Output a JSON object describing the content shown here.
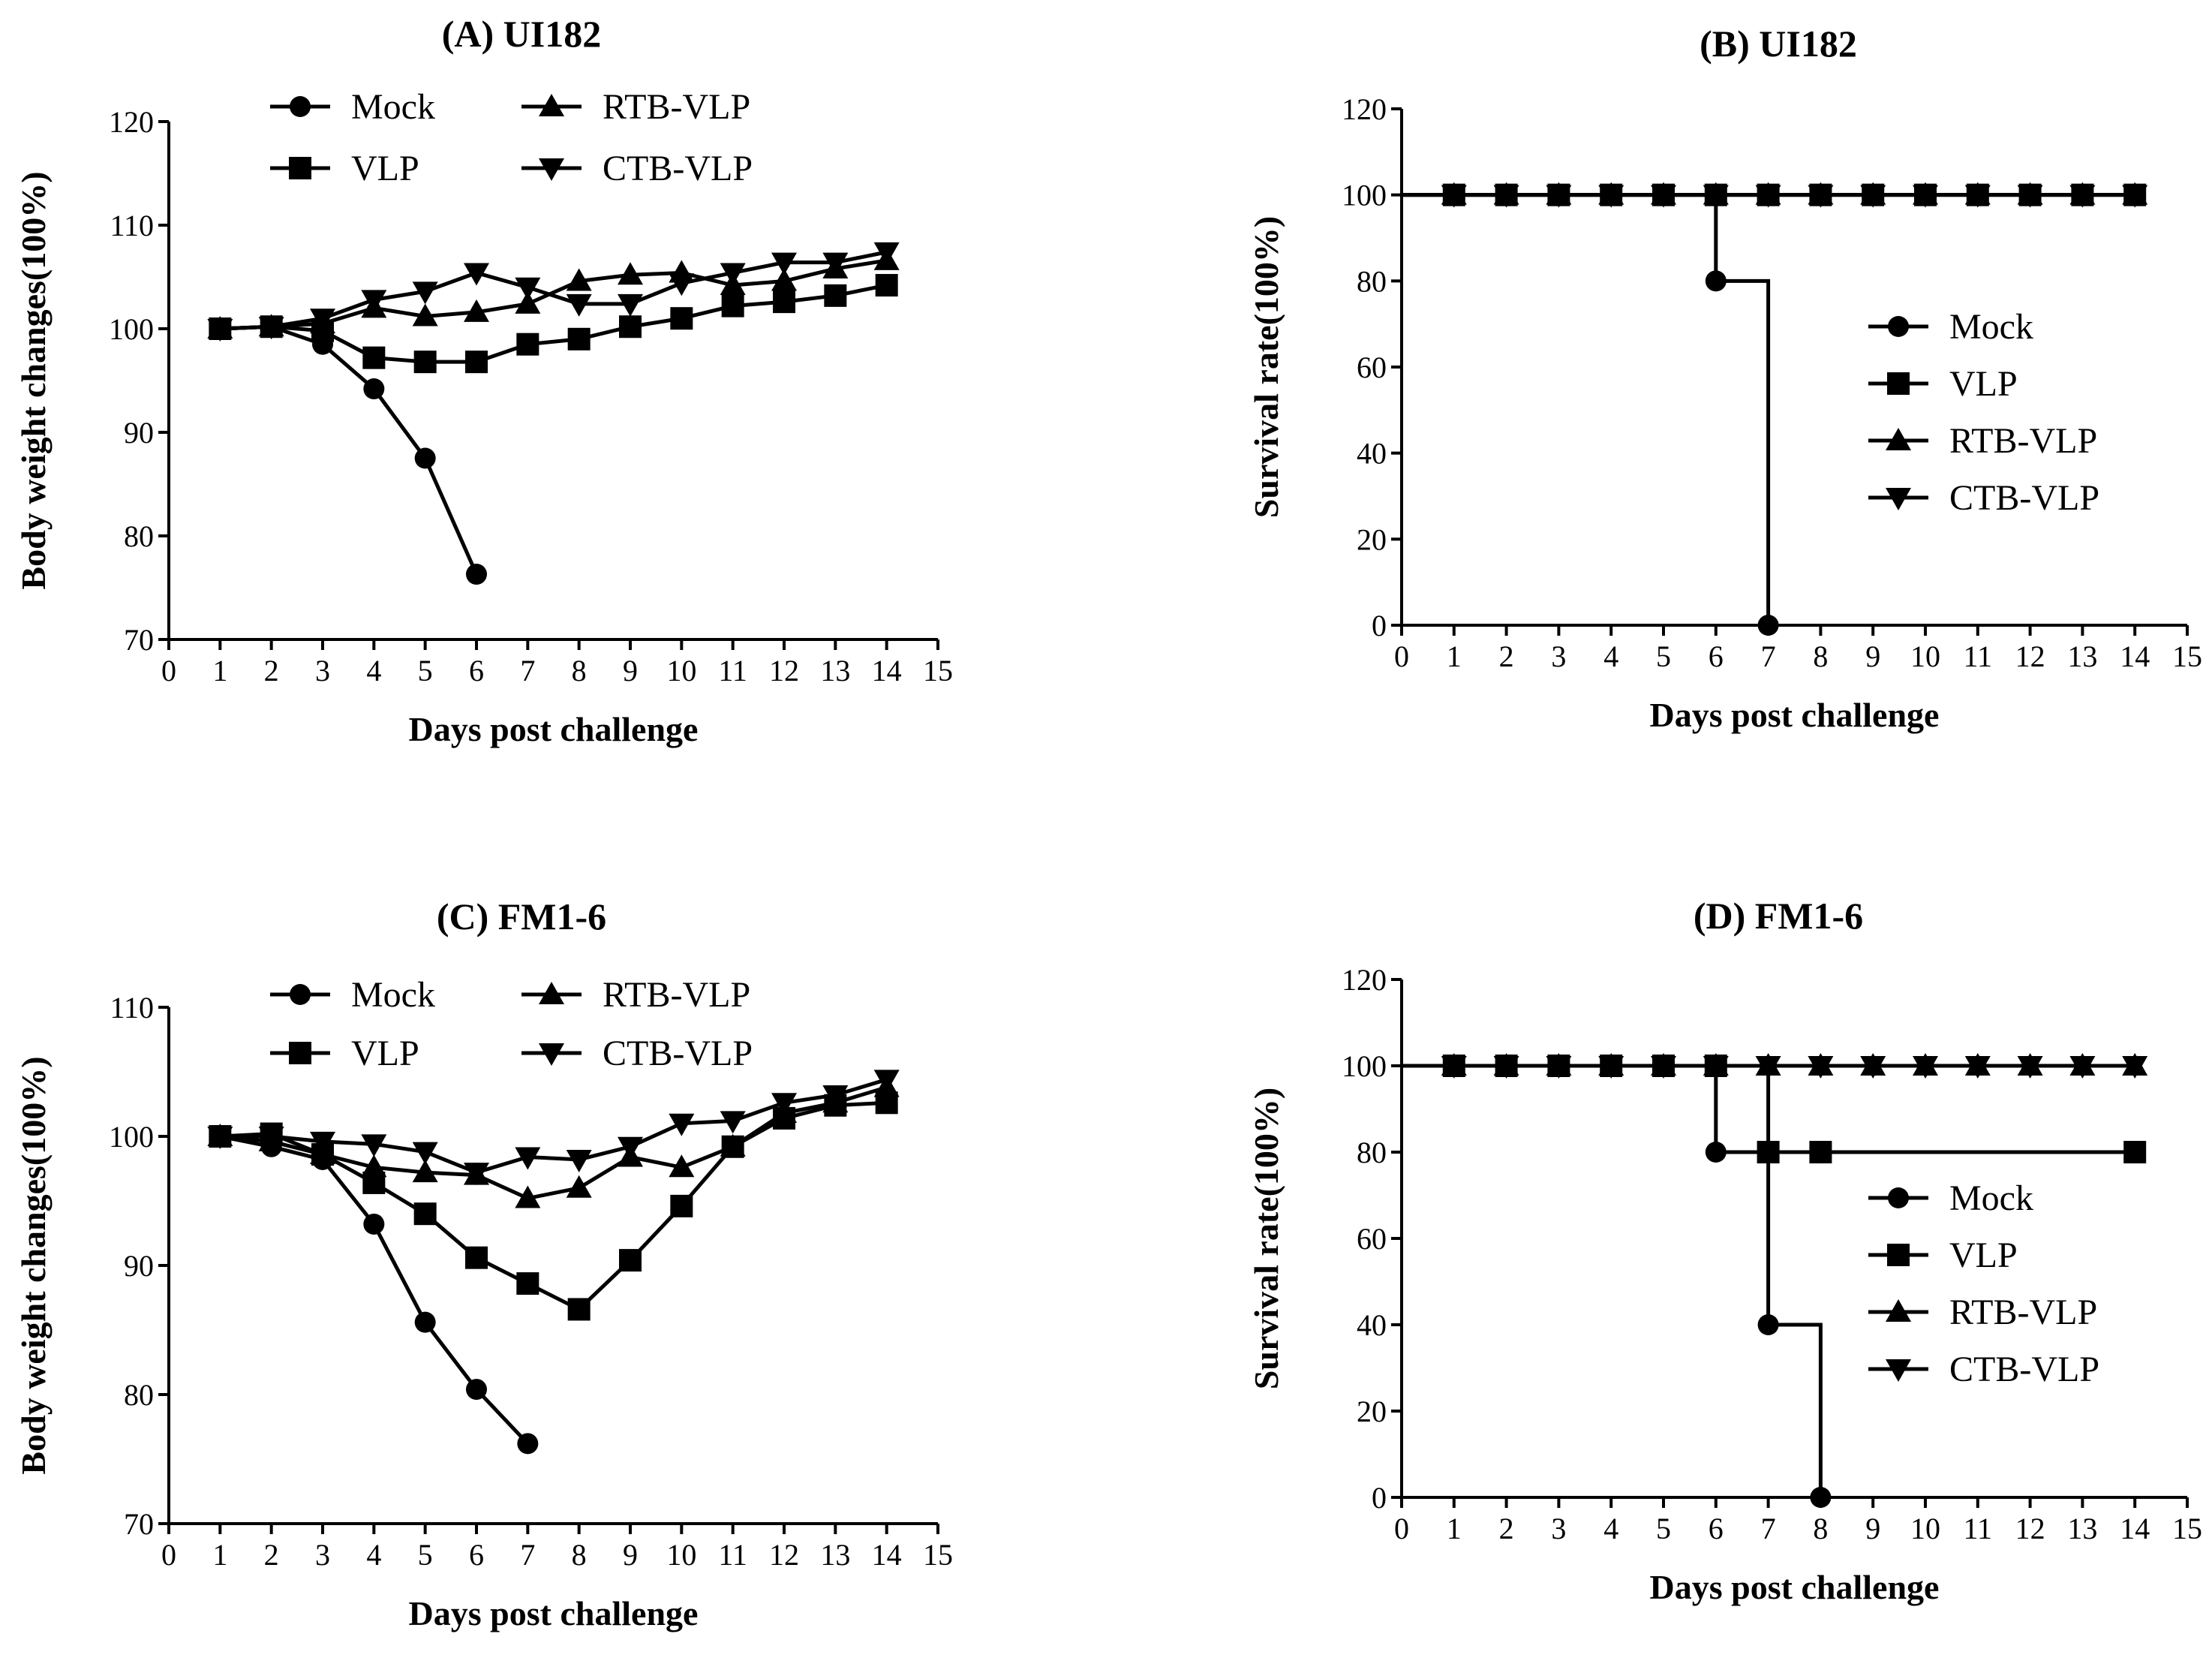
{
  "chart_data": [
    {
      "id": "A",
      "type": "line",
      "title": "(A) UI182",
      "xlabel": "Days post challenge",
      "ylabel": "Body weight changes(100%)",
      "xlim": [
        0,
        15
      ],
      "ylim": [
        70,
        120
      ],
      "xticks": [
        0,
        1,
        2,
        3,
        4,
        5,
        6,
        7,
        8,
        9,
        10,
        11,
        12,
        13,
        14,
        15
      ],
      "yticks": [
        70,
        80,
        90,
        100,
        110,
        120
      ],
      "legend_position": "top-center",
      "series": [
        {
          "name": "Mock",
          "marker": "circle",
          "x": [
            1,
            2,
            3,
            4,
            5,
            6
          ],
          "y": [
            100,
            100.2,
            98.5,
            94.2,
            87.5,
            76.3
          ]
        },
        {
          "name": "VLP",
          "marker": "square",
          "x": [
            1,
            2,
            3,
            4,
            5,
            6,
            7,
            8,
            9,
            10,
            11,
            12,
            13,
            14
          ],
          "y": [
            100,
            100.2,
            99.8,
            97.2,
            96.8,
            96.8,
            98.5,
            99.0,
            100.2,
            101.0,
            102.2,
            102.6,
            103.2,
            104.2
          ]
        },
        {
          "name": "RTB-VLP",
          "marker": "triangle-up",
          "x": [
            1,
            2,
            3,
            4,
            5,
            6,
            7,
            8,
            9,
            10,
            11,
            12,
            13,
            14
          ],
          "y": [
            100,
            100.2,
            100.5,
            102.0,
            101.2,
            101.6,
            102.4,
            104.6,
            105.2,
            105.4,
            104.2,
            104.6,
            105.8,
            106.6
          ]
        },
        {
          "name": "CTB-VLP",
          "marker": "triangle-down",
          "x": [
            1,
            2,
            3,
            4,
            5,
            6,
            7,
            8,
            9,
            10,
            11,
            12,
            13,
            14
          ],
          "y": [
            100,
            100.2,
            101.0,
            102.8,
            103.6,
            105.4,
            104.0,
            102.4,
            102.4,
            104.4,
            105.4,
            106.4,
            106.4,
            107.4
          ]
        }
      ]
    },
    {
      "id": "B",
      "type": "line",
      "subtype": "survival-step",
      "title": "(B) UI182",
      "xlabel": "Days post challenge",
      "ylabel": "Survival rate(100%)",
      "xlim": [
        0,
        15
      ],
      "ylim": [
        0,
        120
      ],
      "xticks": [
        0,
        1,
        2,
        3,
        4,
        5,
        6,
        7,
        8,
        9,
        10,
        11,
        12,
        13,
        14,
        15
      ],
      "yticks": [
        0,
        20,
        40,
        60,
        80,
        100,
        120
      ],
      "legend_position": "center-right",
      "series": [
        {
          "name": "Mock",
          "marker": "circle",
          "x": [
            0,
            1,
            2,
            3,
            4,
            5,
            6,
            7
          ],
          "y": [
            100,
            100,
            100,
            100,
            100,
            100,
            80,
            0
          ]
        },
        {
          "name": "VLP",
          "marker": "square",
          "x": [
            0,
            1,
            2,
            3,
            4,
            5,
            6,
            7,
            8,
            9,
            10,
            11,
            12,
            13,
            14
          ],
          "y": [
            100,
            100,
            100,
            100,
            100,
            100,
            100,
            100,
            100,
            100,
            100,
            100,
            100,
            100,
            100
          ]
        },
        {
          "name": "RTB-VLP",
          "marker": "triangle-up",
          "x": [
            0,
            1,
            2,
            3,
            4,
            5,
            6,
            7,
            8,
            9,
            10,
            11,
            12,
            13,
            14
          ],
          "y": [
            100,
            100,
            100,
            100,
            100,
            100,
            100,
            100,
            100,
            100,
            100,
            100,
            100,
            100,
            100
          ]
        },
        {
          "name": "CTB-VLP",
          "marker": "triangle-down",
          "x": [
            0,
            1,
            2,
            3,
            4,
            5,
            6,
            7,
            8,
            9,
            10,
            11,
            12,
            13,
            14
          ],
          "y": [
            100,
            100,
            100,
            100,
            100,
            100,
            100,
            100,
            100,
            100,
            100,
            100,
            100,
            100,
            100
          ]
        }
      ]
    },
    {
      "id": "C",
      "type": "line",
      "title": "(C) FM1-6",
      "xlabel": "Days post challenge",
      "ylabel": "Body weight changes(100%)",
      "xlim": [
        0,
        15
      ],
      "ylim": [
        70,
        110
      ],
      "xticks": [
        0,
        1,
        2,
        3,
        4,
        5,
        6,
        7,
        8,
        9,
        10,
        11,
        12,
        13,
        14,
        15
      ],
      "yticks": [
        70,
        80,
        90,
        100,
        110
      ],
      "legend_position": "top-center",
      "series": [
        {
          "name": "Mock",
          "marker": "circle",
          "x": [
            1,
            2,
            3,
            4,
            5,
            6,
            7
          ],
          "y": [
            100,
            99.2,
            98.2,
            93.2,
            85.6,
            80.4,
            76.2
          ]
        },
        {
          "name": "VLP",
          "marker": "square",
          "x": [
            1,
            2,
            3,
            4,
            5,
            6,
            7,
            8,
            9,
            10,
            11,
            12,
            13,
            14
          ],
          "y": [
            100,
            100.2,
            98.6,
            96.4,
            94.0,
            90.6,
            88.6,
            86.6,
            90.4,
            94.6,
            99.2,
            101.4,
            102.4,
            102.6
          ]
        },
        {
          "name": "RTB-VLP",
          "marker": "triangle-up",
          "x": [
            1,
            2,
            3,
            4,
            5,
            6,
            7,
            8,
            9,
            10,
            11,
            12,
            13,
            14
          ],
          "y": [
            100,
            99.6,
            98.6,
            97.6,
            97.2,
            97.0,
            95.2,
            96.0,
            98.4,
            97.6,
            99.2,
            101.8,
            102.6,
            103.8
          ]
        },
        {
          "name": "CTB-VLP",
          "marker": "triangle-down",
          "x": [
            1,
            2,
            3,
            4,
            5,
            6,
            7,
            8,
            9,
            10,
            11,
            12,
            13,
            14
          ],
          "y": [
            100,
            100.0,
            99.6,
            99.4,
            98.8,
            97.2,
            98.4,
            98.2,
            99.2,
            101.0,
            101.2,
            102.6,
            103.2,
            104.4
          ]
        }
      ]
    },
    {
      "id": "D",
      "type": "line",
      "subtype": "survival-step",
      "title": "(D) FM1-6",
      "xlabel": "Days post challenge",
      "ylabel": "Survival rate(100%)",
      "xlim": [
        0,
        15
      ],
      "ylim": [
        0,
        120
      ],
      "xticks": [
        0,
        1,
        2,
        3,
        4,
        5,
        6,
        7,
        8,
        9,
        10,
        11,
        12,
        13,
        14,
        15
      ],
      "yticks": [
        0,
        20,
        40,
        60,
        80,
        100,
        120
      ],
      "legend_position": "center-right",
      "series": [
        {
          "name": "Mock",
          "marker": "circle",
          "x": [
            0,
            1,
            2,
            3,
            4,
            5,
            6,
            7,
            8
          ],
          "y": [
            100,
            100,
            100,
            100,
            100,
            100,
            80,
            40,
            0
          ]
        },
        {
          "name": "VLP",
          "marker": "square",
          "x": [
            0,
            1,
            2,
            3,
            4,
            5,
            6,
            7,
            8,
            14
          ],
          "y": [
            100,
            100,
            100,
            100,
            100,
            100,
            100,
            80,
            80,
            80
          ]
        },
        {
          "name": "RTB-VLP",
          "marker": "triangle-up",
          "x": [
            0,
            1,
            2,
            3,
            4,
            5,
            6,
            7,
            8,
            9,
            10,
            11,
            12,
            13,
            14
          ],
          "y": [
            100,
            100,
            100,
            100,
            100,
            100,
            100,
            100,
            100,
            100,
            100,
            100,
            100,
            100,
            100
          ]
        },
        {
          "name": "CTB-VLP",
          "marker": "triangle-down",
          "x": [
            0,
            1,
            2,
            3,
            4,
            5,
            6,
            7,
            8,
            9,
            10,
            11,
            12,
            13,
            14
          ],
          "y": [
            100,
            100,
            100,
            100,
            100,
            100,
            100,
            100,
            100,
            100,
            100,
            100,
            100,
            100,
            100
          ]
        }
      ]
    }
  ]
}
